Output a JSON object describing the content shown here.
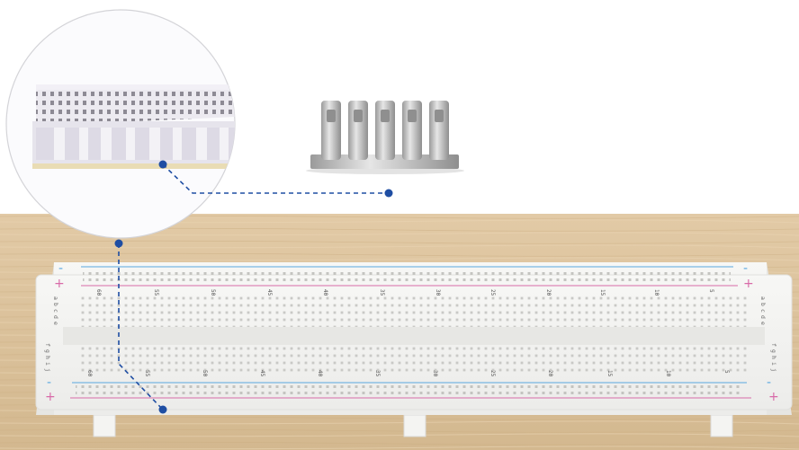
{
  "breadboard": {
    "top_numbers": [
      "60",
      "55",
      "50",
      "45",
      "40",
      "35",
      "30",
      "25",
      "20",
      "15",
      "10",
      "5"
    ],
    "bottom_numbers": [
      "60",
      "55",
      "50",
      "45",
      "40",
      "35",
      "30",
      "25",
      "20",
      "15",
      "10",
      "5"
    ],
    "rows_top_left": [
      "a",
      "b",
      "c",
      "d",
      "e"
    ],
    "rows_bottom_left": [
      "f",
      "g",
      "h",
      "i",
      "j"
    ],
    "rows_top_right": [
      "a",
      "b",
      "c",
      "d",
      "e"
    ],
    "rows_bottom_right": [
      "f",
      "g",
      "h",
      "i",
      "j"
    ],
    "minus_sign": "-",
    "plus_sign": "+"
  },
  "colors": {
    "wood": "#dcc4a0",
    "board": "#f1f1ef",
    "rail_blue": "#5aa8e0",
    "rail_red": "#d86aa8",
    "callout": "#1f4ea3",
    "metal": "#c8c8c8"
  },
  "icons": [
    "magnifier-callout-circle",
    "metal-clip-strip",
    "callout-dot"
  ]
}
